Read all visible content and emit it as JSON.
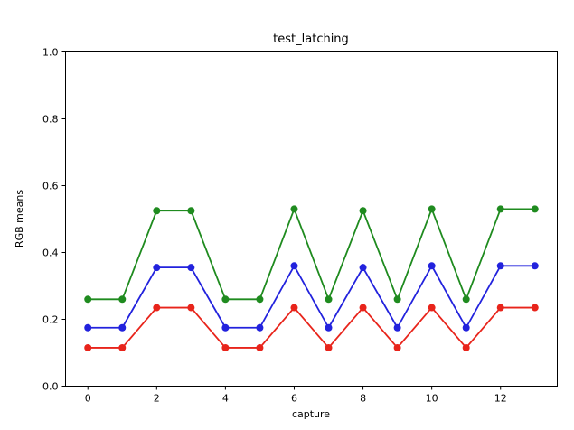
{
  "chart_data": {
    "type": "line",
    "title": "test_latching",
    "xlabel": "capture",
    "ylabel": "RGB means",
    "xlim": [
      -0.65,
      13.65
    ],
    "ylim": [
      0.0,
      1.0
    ],
    "grid": false,
    "legend": "none",
    "xticks": {
      "values": [
        0,
        2,
        4,
        6,
        8,
        10,
        12
      ],
      "labels": [
        "0",
        "2",
        "4",
        "6",
        "8",
        "10",
        "12"
      ]
    },
    "yticks": {
      "values": [
        0.0,
        0.2,
        0.4,
        0.6,
        0.8,
        1.0
      ],
      "labels": [
        "0.0",
        "0.2",
        "0.4",
        "0.6",
        "0.8",
        "1.0"
      ]
    },
    "x": [
      0,
      1,
      2,
      3,
      4,
      5,
      6,
      7,
      8,
      9,
      10,
      11,
      12,
      13
    ],
    "series": [
      {
        "name": "green",
        "color": "#1f8b1f",
        "marker": "o",
        "values": [
          0.26,
          0.26,
          0.525,
          0.525,
          0.26,
          0.26,
          0.53,
          0.26,
          0.525,
          0.26,
          0.53,
          0.26,
          0.53,
          0.53
        ]
      },
      {
        "name": "blue",
        "color": "#2222dd",
        "marker": "o",
        "values": [
          0.175,
          0.175,
          0.355,
          0.355,
          0.175,
          0.175,
          0.36,
          0.175,
          0.355,
          0.175,
          0.36,
          0.175,
          0.36,
          0.36
        ]
      },
      {
        "name": "red",
        "color": "#e8241b",
        "marker": "o",
        "values": [
          0.115,
          0.115,
          0.235,
          0.235,
          0.115,
          0.115,
          0.235,
          0.115,
          0.235,
          0.115,
          0.235,
          0.115,
          0.235,
          0.235
        ]
      }
    ]
  }
}
